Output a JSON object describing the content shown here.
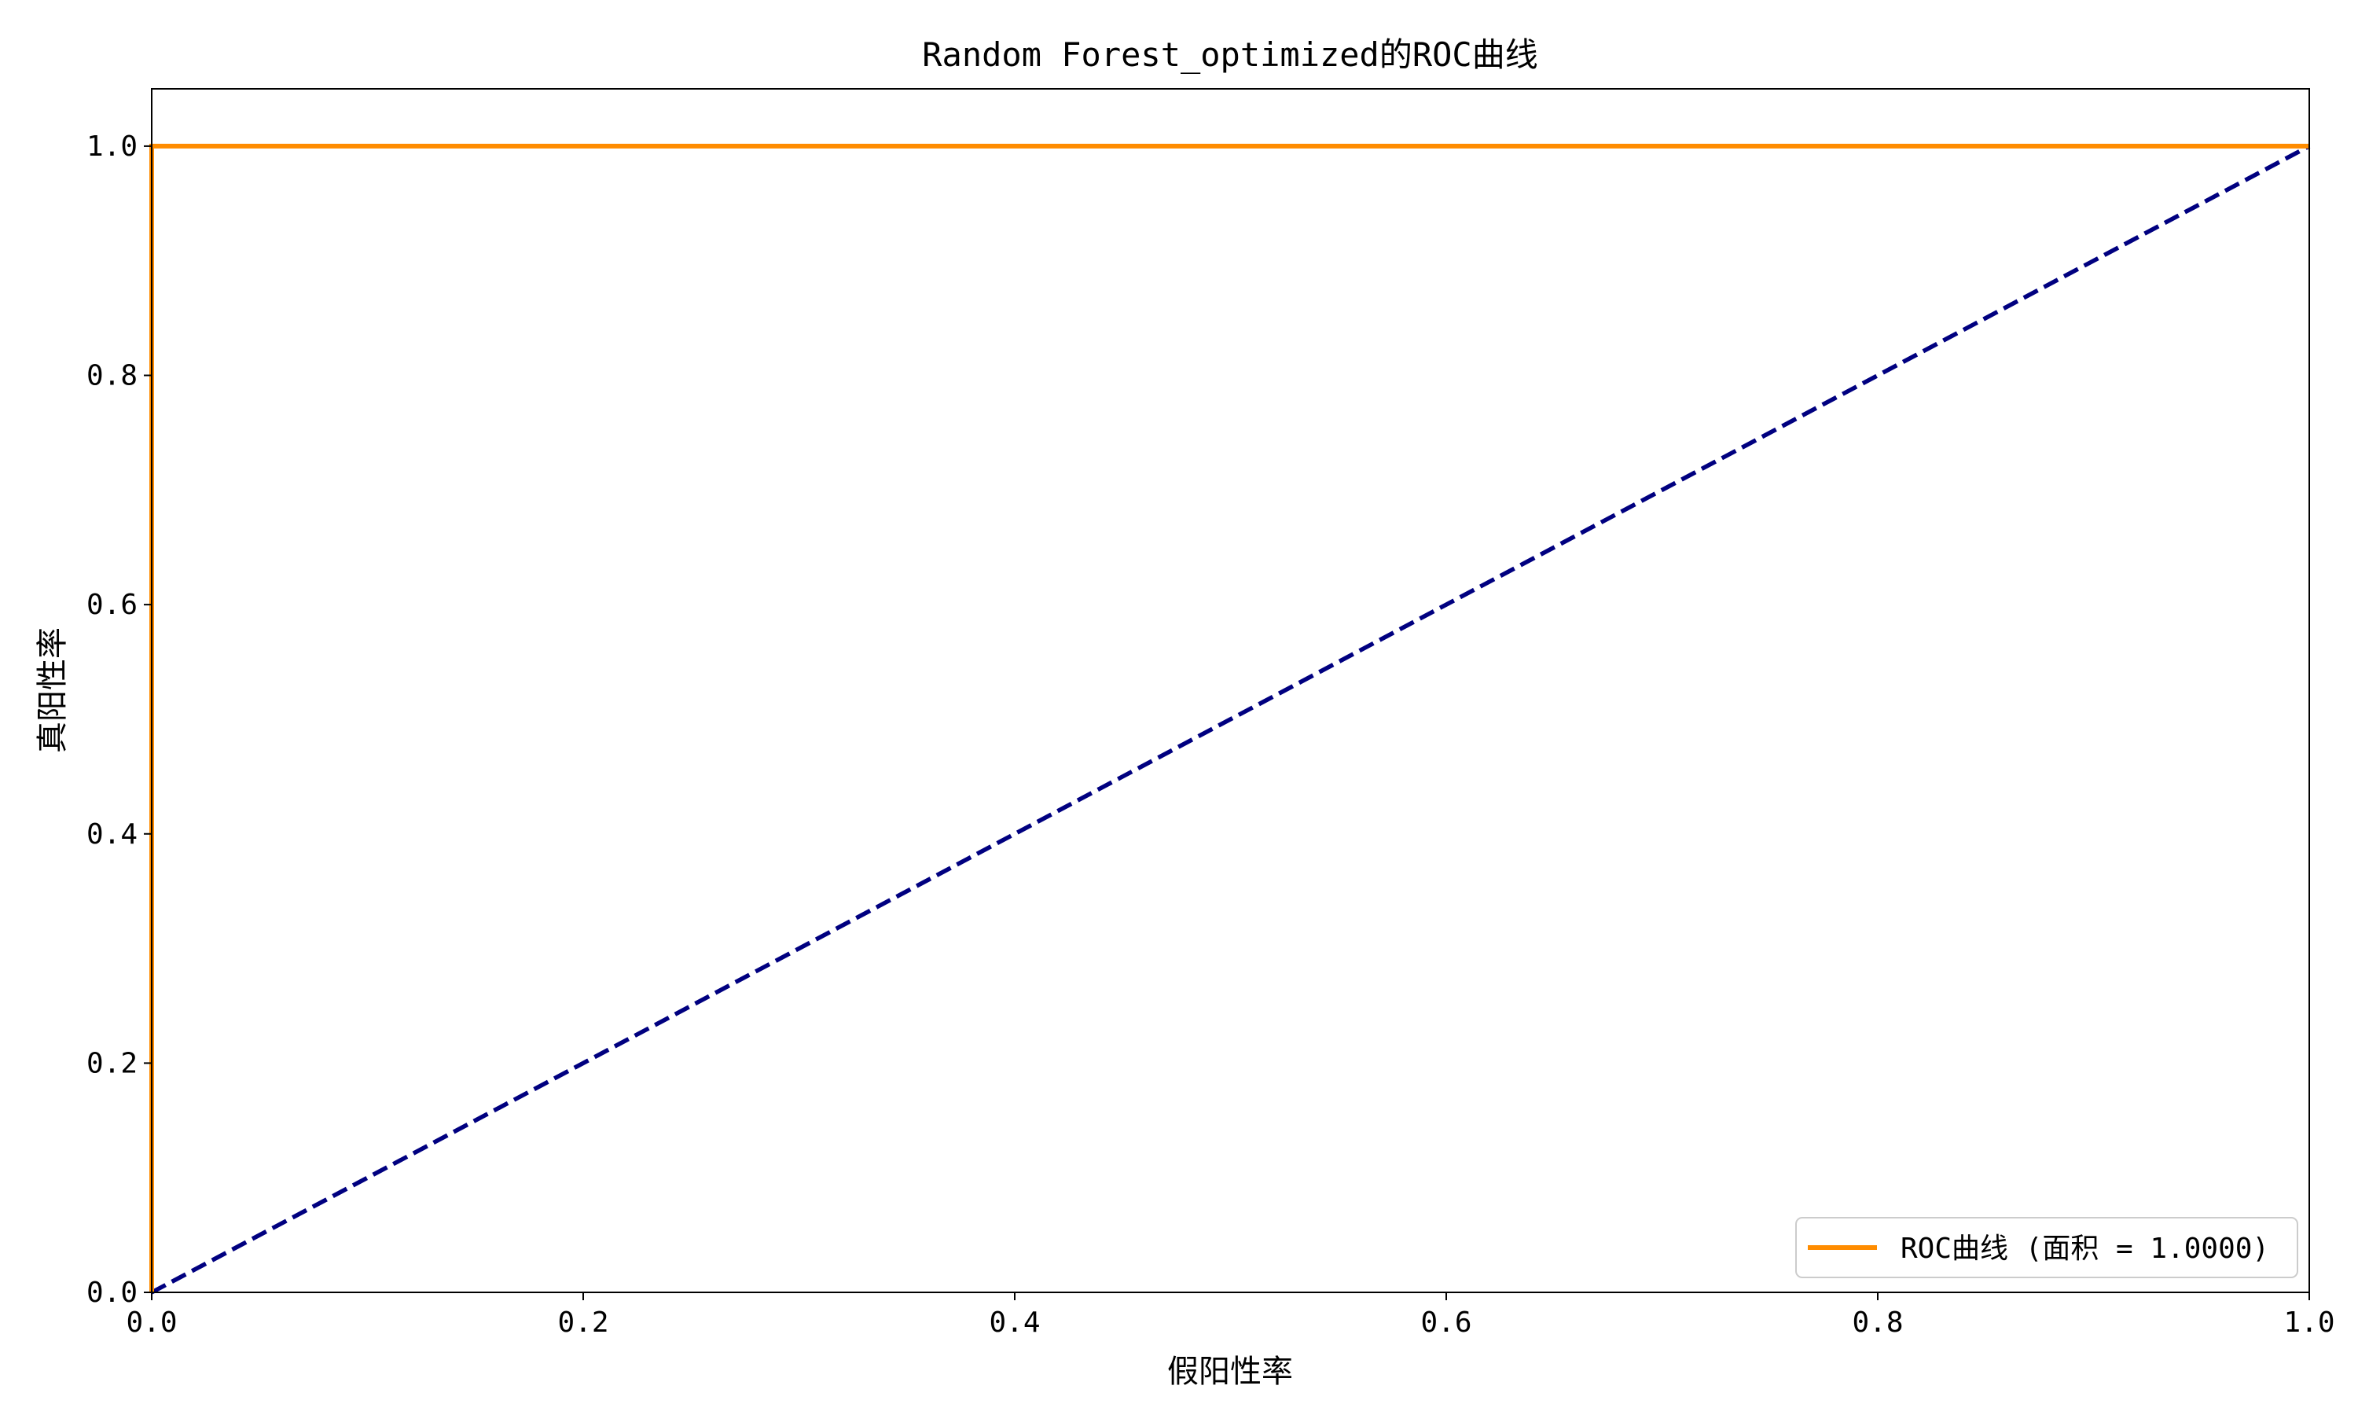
{
  "chart_data": {
    "type": "line",
    "title": "Random Forest_optimized的ROC曲线",
    "xlabel": "假阳性率",
    "ylabel": "真阳性率",
    "xlim": [
      0.0,
      1.0
    ],
    "ylim": [
      0.0,
      1.05
    ],
    "x_ticks": [
      "0.0",
      "0.2",
      "0.4",
      "0.6",
      "0.8",
      "1.0"
    ],
    "y_ticks": [
      "0.0",
      "0.2",
      "0.4",
      "0.6",
      "0.8",
      "1.0"
    ],
    "grid": false,
    "legend_position": "lower-right",
    "series": [
      {
        "name": "ROC曲线 (面积 = 1.0000)",
        "color": "#ff8c00",
        "style": "solid",
        "x": [
          0.0,
          0.0,
          1.0
        ],
        "y": [
          0.0,
          1.0,
          1.0
        ]
      },
      {
        "color": "#000080",
        "style": "dashed",
        "x": [
          0.0,
          1.0
        ],
        "y": [
          0.0,
          1.0
        ]
      }
    ]
  }
}
